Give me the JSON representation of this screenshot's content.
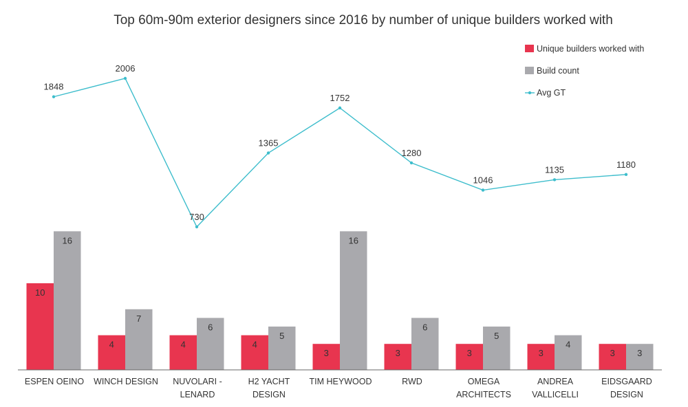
{
  "chart_data": {
    "type": "bar",
    "title": "Top 60m-90m exterior designers since 2016 by number of unique builders worked with",
    "categories": [
      [
        "ESPEN OEINO"
      ],
      [
        "WINCH DESIGN"
      ],
      [
        "NUVOLARI -",
        "LENARD"
      ],
      [
        "H2 YACHT",
        "DESIGN"
      ],
      [
        "TIM HEYWOOD"
      ],
      [
        "RWD"
      ],
      [
        "OMEGA",
        "ARCHITECTS"
      ],
      [
        "ANDREA",
        "VALLICELLI"
      ],
      [
        "EIDSGAARD",
        "DESIGN"
      ]
    ],
    "series": [
      {
        "name": "Unique builders worked with",
        "kind": "bar",
        "color": "#e8354f",
        "values": [
          10,
          4,
          4,
          4,
          3,
          3,
          3,
          3,
          3
        ]
      },
      {
        "name": "Build count",
        "kind": "bar",
        "color": "#a9a9ad",
        "values": [
          16,
          7,
          6,
          5,
          16,
          6,
          5,
          4,
          3
        ]
      },
      {
        "name": "Avg GT",
        "kind": "line",
        "color": "#3dbdcc",
        "values": [
          1848,
          2006,
          730,
          1365,
          1752,
          1280,
          1046,
          1135,
          1180
        ]
      }
    ],
    "legend_position": "top-right",
    "grid": false,
    "bar_axis_range": [
      0,
      16
    ],
    "line_axis_range": [
      730,
      2006
    ]
  }
}
